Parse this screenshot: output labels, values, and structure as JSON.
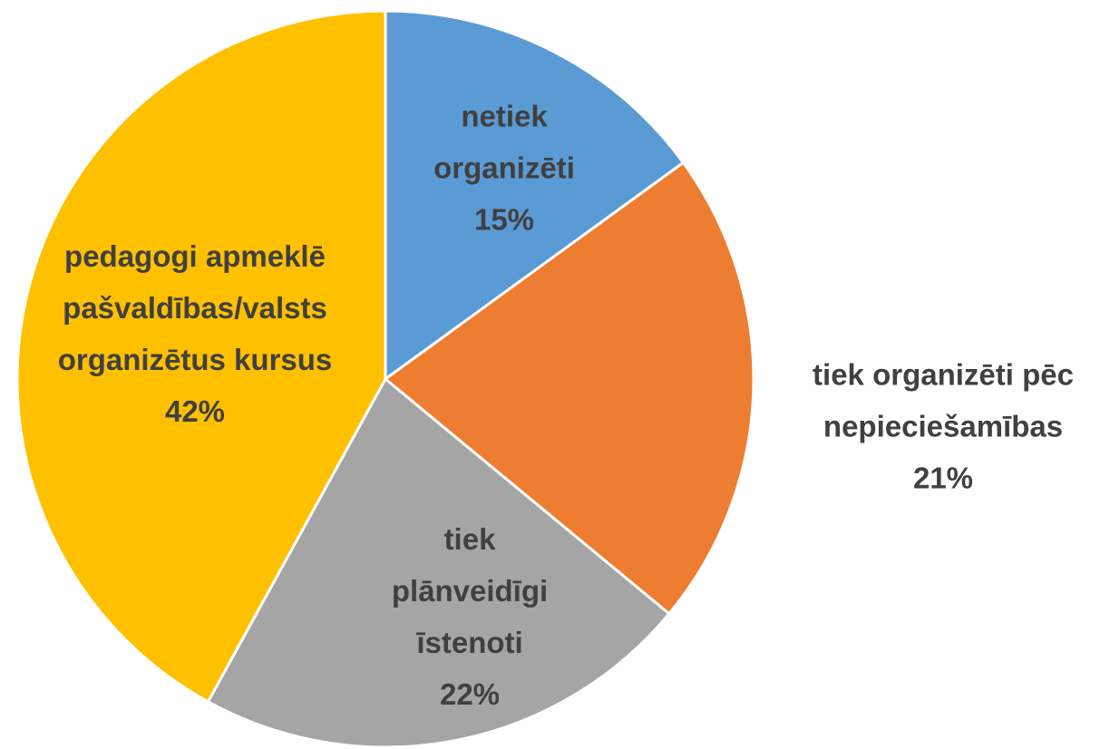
{
  "chart_data": {
    "type": "pie",
    "categories": [
      "netiek organizēti",
      "tiek organizēti pēc nepieciešamības",
      "tiek plānveidīgi īstenoti",
      "pedagogi apmeklē pašvaldības/valsts organizētus kursus"
    ],
    "values": [
      15,
      21,
      22,
      42
    ],
    "value_labels": [
      "15%",
      "21%",
      "22%",
      "42%"
    ],
    "colors": [
      "#5b9bd5",
      "#ed7d31",
      "#a5a5a5",
      "#ffc000"
    ]
  }
}
